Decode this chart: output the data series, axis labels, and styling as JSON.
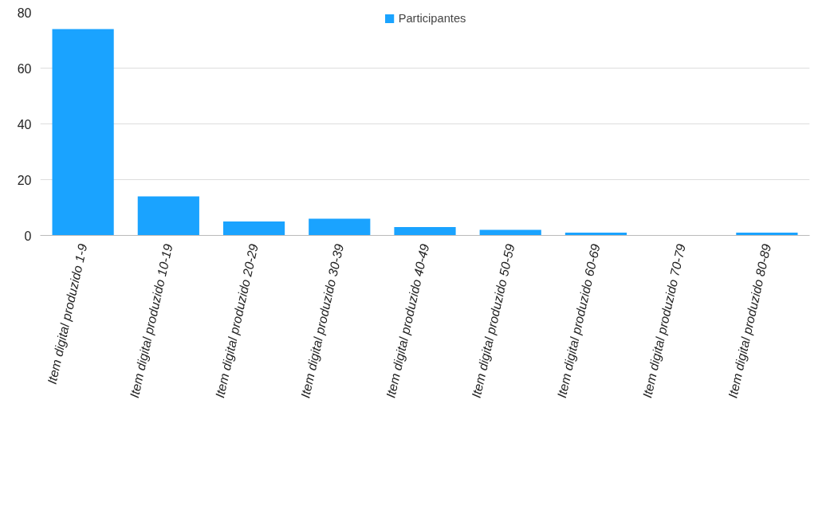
{
  "chart_data": {
    "type": "bar",
    "categories": [
      "Item digital produzido 1-9",
      "Item digital produzido 10-19",
      "Item digital produzido 20-29",
      "Item digital produzido 30-39",
      "Item digital produzido 40-49",
      "Item digital produzido 50-59",
      "Item digital produzido 60-69",
      "Item digital produzido 70-79",
      "Item digital produzido 80-89"
    ],
    "series": [
      {
        "name": "Participantes",
        "color": "#1aa3ff",
        "values": [
          74,
          14,
          5,
          6,
          3,
          2,
          1,
          0,
          1
        ]
      }
    ],
    "ylim": [
      0,
      80
    ],
    "yticks": [
      0,
      20,
      40,
      60,
      80
    ],
    "grid": "y",
    "legend": "top"
  }
}
